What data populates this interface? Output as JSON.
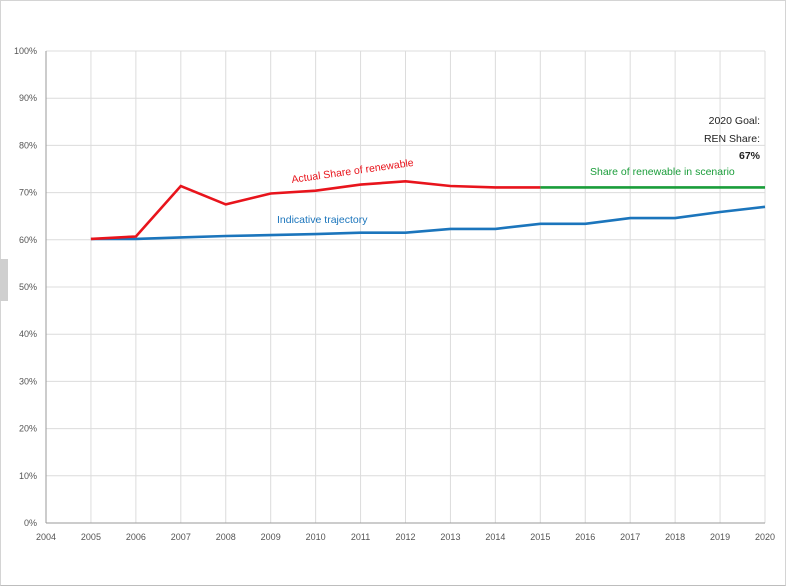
{
  "chart_data": {
    "type": "line",
    "x_ticks": [
      "2004",
      "2005",
      "2006",
      "2007",
      "2008",
      "2009",
      "2010",
      "2011",
      "2012",
      "2013",
      "2014",
      "2015",
      "2016",
      "2017",
      "2018",
      "2019",
      "2020"
    ],
    "y_ticks": [
      "0%",
      "10%",
      "20%",
      "30%",
      "40%",
      "50%",
      "60%",
      "70%",
      "80%",
      "90%",
      "100%"
    ],
    "xlim": [
      2004,
      2020
    ],
    "ylim": [
      0,
      100
    ],
    "grid": true,
    "series": [
      {
        "name": "Actual Share of renewable",
        "color": "#e8141c",
        "x": [
          2005,
          2006,
          2007,
          2008,
          2009,
          2010,
          2011,
          2012,
          2013,
          2014,
          2015
        ],
        "y": [
          60.2,
          60.7,
          71.4,
          67.5,
          69.8,
          70.4,
          71.7,
          72.4,
          71.4,
          71.1,
          71.1
        ]
      },
      {
        "name": "Indicative trajectory",
        "color": "#1b75bc",
        "x": [
          2005,
          2006,
          2007,
          2008,
          2009,
          2010,
          2011,
          2012,
          2013,
          2014,
          2015,
          2016,
          2017,
          2018,
          2019,
          2020
        ],
        "y": [
          60.2,
          60.2,
          60.5,
          60.8,
          61.0,
          61.2,
          61.5,
          61.5,
          62.3,
          62.3,
          63.4,
          63.4,
          64.6,
          64.6,
          65.9,
          67.0
        ]
      },
      {
        "name": "Share of renewable in scenario",
        "color": "#1a9d3a",
        "x": [
          2015,
          2020
        ],
        "y": [
          71.1,
          71.1
        ]
      }
    ],
    "annotations": {
      "goal_line1": "2020 Goal:",
      "goal_line2": "REN Share:",
      "goal_value": "67%"
    }
  }
}
